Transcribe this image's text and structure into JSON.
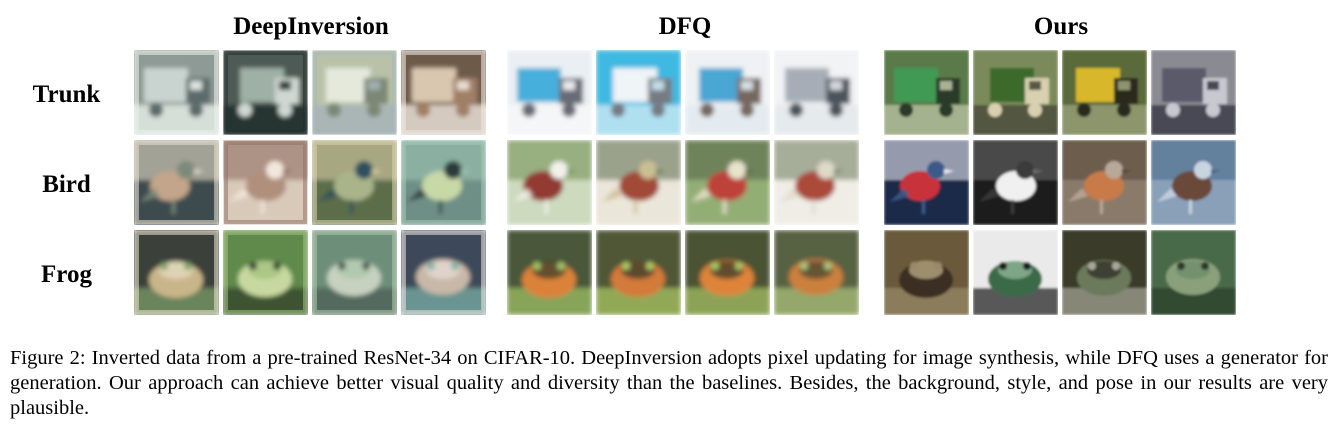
{
  "figure": {
    "groups": [
      {
        "title": "DeepInversion",
        "style": "pixel"
      },
      {
        "title": "DFQ",
        "style": "generator"
      },
      {
        "title": "Ours",
        "style": "ours"
      }
    ],
    "rows": [
      {
        "label": "Trunk",
        "subject": "truck"
      },
      {
        "label": "Bird",
        "subject": "bird"
      },
      {
        "label": "Frog",
        "subject": "frog"
      }
    ],
    "images_per_cell": 4
  },
  "caption": {
    "text": "Figure 2: Inverted data from a pre-trained ResNet-34 on CIFAR-10. DeepInversion adopts pixel updating for image synthesis, while DFQ uses a generator for generation. Our approach can achieve better visual quality and diversity than the baselines. Besides, the background, style, and pose in our results are very plausible."
  }
}
